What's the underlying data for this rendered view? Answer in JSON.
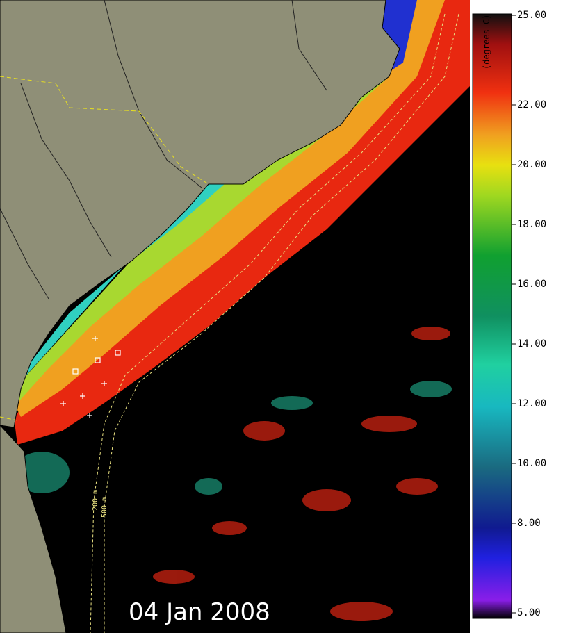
{
  "map": {
    "date": "04 Jan 2008",
    "contour_labels": [
      "200 m",
      "500 m"
    ],
    "colorbar": {
      "label": "(degrees-C)",
      "range": [
        5,
        25
      ],
      "ticks": [
        {
          "value": 25,
          "label": "25.00"
        },
        {
          "value": 22,
          "label": "22.00"
        },
        {
          "value": 20,
          "label": "20.00"
        },
        {
          "value": 18,
          "label": "18.00"
        },
        {
          "value": 16,
          "label": "16.00"
        },
        {
          "value": 14,
          "label": "14.00"
        },
        {
          "value": 12,
          "label": "12.00"
        },
        {
          "value": 10,
          "label": "10.00"
        },
        {
          "value": 8,
          "label": "8.00"
        },
        {
          "value": 5,
          "label": "5.00"
        }
      ]
    }
  }
}
